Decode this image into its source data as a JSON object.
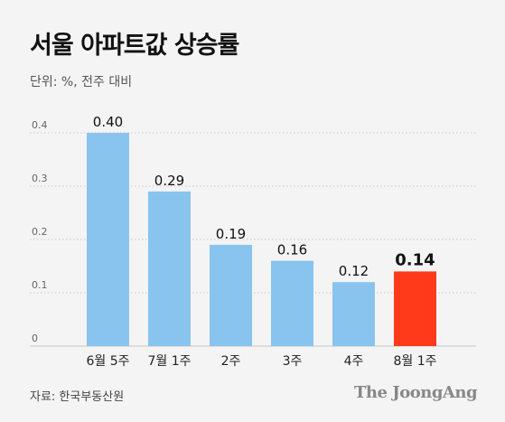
{
  "header": {
    "title": "서울 아파트값 상승률",
    "subtitle": "단위: %, 전주 대비"
  },
  "footer": {
    "source": "자료: 한국부동산원",
    "logo": "The JoongAng"
  },
  "colors": {
    "bar_default": "#89c4ef",
    "bar_highlight": "#ff3a1a",
    "grid": "#c9c9c9",
    "axis_label": "#666666",
    "value_label": "#111111"
  },
  "chart_data": {
    "type": "bar",
    "title": "서울 아파트값 상승률",
    "subtitle": "단위: %, 전주 대비",
    "categories": [
      "6월 5주",
      "7월 1주",
      "2주",
      "3주",
      "4주",
      "8월 1주"
    ],
    "values": [
      0.4,
      0.29,
      0.19,
      0.16,
      0.12,
      0.14
    ],
    "value_labels": [
      "0.40",
      "0.29",
      "0.19",
      "0.16",
      "0.12",
      "0.14"
    ],
    "highlight_index": 5,
    "yticks": [
      "0",
      "0.1",
      "0.2",
      "0.3",
      "0.4"
    ],
    "ylim": [
      0,
      0.4
    ],
    "grid": true,
    "legend": "none"
  }
}
